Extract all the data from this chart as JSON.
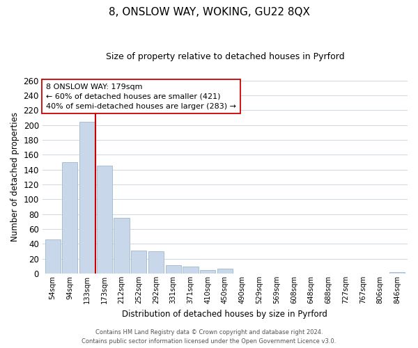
{
  "title": "8, ONSLOW WAY, WOKING, GU22 8QX",
  "subtitle": "Size of property relative to detached houses in Pyrford",
  "xlabel": "Distribution of detached houses by size in Pyrford",
  "ylabel": "Number of detached properties",
  "bar_labels": [
    "54sqm",
    "94sqm",
    "133sqm",
    "173sqm",
    "212sqm",
    "252sqm",
    "292sqm",
    "331sqm",
    "371sqm",
    "410sqm",
    "450sqm",
    "490sqm",
    "529sqm",
    "569sqm",
    "608sqm",
    "648sqm",
    "688sqm",
    "727sqm",
    "767sqm",
    "806sqm",
    "846sqm"
  ],
  "bar_values": [
    46,
    150,
    204,
    145,
    75,
    31,
    30,
    11,
    9,
    5,
    7,
    0,
    0,
    0,
    0,
    0,
    0,
    0,
    0,
    0,
    2
  ],
  "bar_color": "#c8d8ea",
  "bar_edge_color": "#a0b8cc",
  "vline_x": 2.5,
  "vline_color": "#cc0000",
  "annotation_line1": "8 ONSLOW WAY: 179sqm",
  "annotation_line2": "← 60% of detached houses are smaller (421)",
  "annotation_line3": "40% of semi-detached houses are larger (283) →",
  "annotation_box_color": "white",
  "annotation_box_edge_color": "#cc0000",
  "ylim": [
    0,
    260
  ],
  "yticks": [
    0,
    20,
    40,
    60,
    80,
    100,
    120,
    140,
    160,
    180,
    200,
    220,
    240,
    260
  ],
  "footer_line1": "Contains HM Land Registry data © Crown copyright and database right 2024.",
  "footer_line2": "Contains public sector information licensed under the Open Government Licence v3.0.",
  "background_color": "#ffffff",
  "grid_color": "#cdd8e3"
}
